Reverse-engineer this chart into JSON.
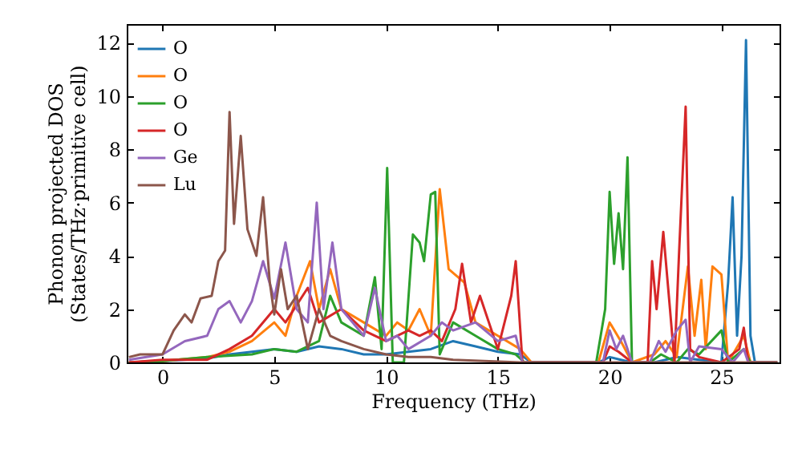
{
  "chart_data": {
    "type": "line",
    "xlabel": "Frequency (THz)",
    "ylabel": "Phonon projected DOS\n(States/THz·primitive cell)",
    "xlim": [
      -1.6,
      27.6
    ],
    "ylim": [
      0,
      12.7
    ],
    "xticks": [
      0,
      5,
      10,
      15,
      20,
      25
    ],
    "yticks": [
      0,
      2,
      4,
      6,
      8,
      10,
      12
    ],
    "legend": "top left",
    "grid": false,
    "line_style": "solid",
    "marker": "none",
    "series": [
      {
        "name": "O",
        "color": "#1f77b4",
        "x": [
          -1.5,
          0,
          2,
          3,
          4,
          5,
          6,
          7,
          8,
          9,
          10,
          11,
          12,
          13,
          14,
          15,
          16,
          16.5,
          19.5,
          20,
          20.5,
          21,
          22,
          22.5,
          23,
          24,
          25,
          25.3,
          25.5,
          25.7,
          25.9,
          26.1,
          26.3,
          26.5,
          27.5
        ],
        "values": [
          0,
          0.05,
          0.15,
          0.3,
          0.4,
          0.5,
          0.4,
          0.6,
          0.5,
          0.3,
          0.3,
          0.4,
          0.5,
          0.8,
          0.6,
          0.4,
          0.3,
          0,
          0,
          0.2,
          0.1,
          0,
          0,
          0.1,
          0.2,
          0.1,
          0,
          3,
          6.2,
          1,
          4,
          12.1,
          1,
          0,
          0
        ]
      },
      {
        "name": "O",
        "color": "#ff7f0e",
        "x": [
          -1.5,
          0,
          2,
          3,
          4,
          5,
          5.5,
          6,
          6.6,
          7,
          7.5,
          8,
          9,
          10,
          10.5,
          11,
          11.5,
          12,
          12.4,
          12.8,
          13.5,
          14,
          15,
          16,
          16.5,
          19.5,
          20,
          20.5,
          21,
          22,
          22.5,
          23,
          23.5,
          23.8,
          24.1,
          24.3,
          24.6,
          25,
          25.3,
          26,
          26.3,
          27.5
        ],
        "values": [
          0,
          0.05,
          0.2,
          0.4,
          0.8,
          1.5,
          1,
          2.5,
          3.8,
          2,
          3.5,
          2,
          1.5,
          1,
          1.5,
          1.2,
          2,
          1,
          6.5,
          3.5,
          3,
          1.5,
          1,
          0.5,
          0,
          0,
          1.5,
          0.8,
          0,
          0.3,
          0.8,
          0.2,
          3.6,
          1,
          3.1,
          0.5,
          3.6,
          3.3,
          0,
          1,
          0,
          0
        ]
      },
      {
        "name": "O",
        "color": "#2ca02c",
        "x": [
          -1.5,
          0,
          2,
          4,
          5,
          6,
          7,
          7.5,
          8,
          9,
          9.5,
          9.8,
          10.05,
          10.3,
          10.8,
          11.2,
          11.5,
          11.7,
          12,
          12.2,
          12.4,
          13,
          14,
          15,
          15.8,
          16.2,
          19.4,
          19.8,
          20,
          20.2,
          20.4,
          20.6,
          20.8,
          21,
          21.8,
          22.3,
          23,
          23.5,
          24,
          25,
          25.3,
          26,
          26.3,
          27.5
        ],
        "values": [
          0,
          0.05,
          0.2,
          0.3,
          0.5,
          0.4,
          0.8,
          2.5,
          1.5,
          1,
          3.2,
          0.5,
          7.3,
          0,
          0,
          4.8,
          4.5,
          3.8,
          6.3,
          6.4,
          0.3,
          1.5,
          1,
          0.5,
          0.3,
          0,
          0,
          2,
          6.4,
          3.7,
          5.6,
          3.5,
          7.7,
          0,
          0,
          0.3,
          0,
          0.5,
          0.3,
          1.2,
          0,
          0.5,
          0,
          0
        ]
      },
      {
        "name": "O",
        "color": "#d62728",
        "x": [
          -1.5,
          0,
          2,
          3,
          4,
          5,
          5.5,
          6.5,
          7,
          8,
          9,
          10,
          11,
          11.5,
          12,
          12.5,
          13.1,
          13.4,
          13.8,
          14.2,
          14.8,
          15,
          15.6,
          15.8,
          16.1,
          19.7,
          20,
          20.4,
          21,
          21.7,
          21.9,
          22.1,
          22.4,
          22.7,
          22.9,
          23.1,
          23.4,
          23.6,
          24,
          25,
          25.8,
          26,
          26.2,
          27.5
        ],
        "values": [
          0,
          0.1,
          0.1,
          0.5,
          1,
          2,
          1.5,
          2.8,
          1.5,
          2,
          1.2,
          0.8,
          1.2,
          1,
          1.2,
          0.8,
          2,
          3.7,
          1.5,
          2.5,
          1,
          0.5,
          2.5,
          3.8,
          0,
          0,
          0.6,
          0.4,
          0,
          0,
          3.8,
          2,
          4.9,
          2,
          0,
          4,
          9.6,
          0.5,
          0.2,
          0,
          0.5,
          1.3,
          0,
          0
        ]
      },
      {
        "name": "Ge",
        "color": "#9467bd",
        "x": [
          -1.5,
          0,
          1,
          2,
          2.5,
          3,
          3.5,
          4,
          4.5,
          5,
          5.5,
          6,
          6.5,
          6.9,
          7.2,
          7.6,
          8,
          8.5,
          9,
          9.5,
          10,
          10.5,
          11,
          12,
          12.5,
          13,
          14,
          15,
          15.8,
          16.1,
          19.7,
          20,
          20.3,
          20.6,
          21,
          21.8,
          22.2,
          22.5,
          23,
          23.4,
          23.6,
          24,
          25,
          25.5,
          26,
          26.2,
          27.5
        ],
        "values": [
          0.1,
          0.3,
          0.8,
          1,
          2,
          2.3,
          1.5,
          2.3,
          3.8,
          2.4,
          4.5,
          2,
          1.5,
          6,
          2,
          4.5,
          2,
          1.5,
          1,
          2.8,
          0.8,
          1,
          0.5,
          1,
          1.5,
          1.2,
          1.5,
          0.8,
          1,
          0,
          0,
          1.2,
          0.5,
          1,
          0,
          0,
          0.8,
          0.4,
          1.2,
          1.6,
          0,
          0.6,
          0.5,
          0,
          0.5,
          0,
          0
        ]
      },
      {
        "name": "Lu",
        "color": "#8c564b",
        "x": [
          -1.5,
          -1,
          0,
          0.5,
          1,
          1.3,
          1.7,
          2.2,
          2.5,
          2.8,
          3,
          3.2,
          3.5,
          3.8,
          4.2,
          4.5,
          4.8,
          5,
          5.3,
          5.6,
          6,
          6.5,
          7,
          7.5,
          8,
          9,
          10,
          11,
          12,
          13,
          16,
          27.5
        ],
        "values": [
          0.2,
          0.3,
          0.3,
          1.2,
          1.8,
          1.5,
          2.4,
          2.5,
          3.8,
          4.2,
          9.4,
          5.2,
          8.5,
          5,
          4,
          6.2,
          3,
          1.8,
          3.5,
          2,
          2.5,
          0.5,
          2,
          1,
          0.8,
          0.5,
          0.3,
          0.2,
          0.2,
          0.1,
          0,
          0
        ]
      }
    ]
  }
}
